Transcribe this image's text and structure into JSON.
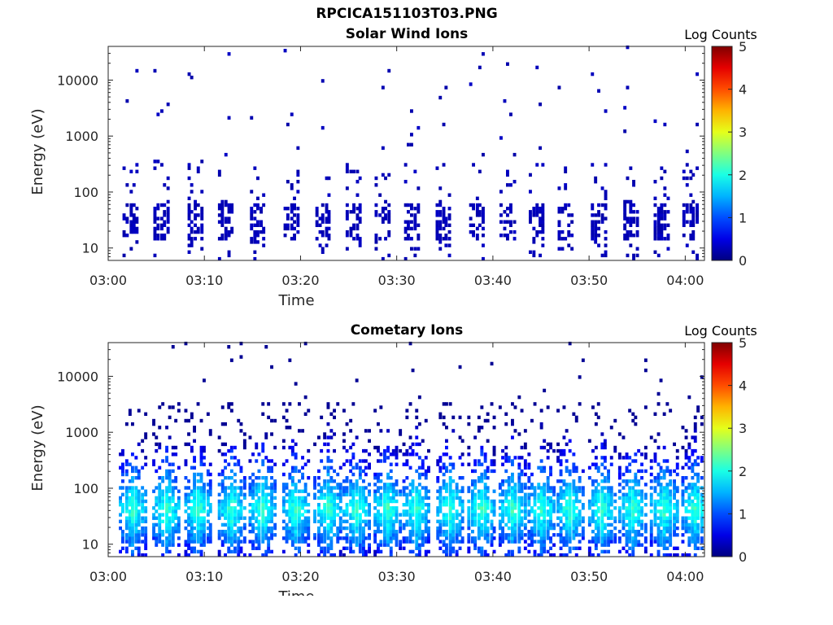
{
  "figure": {
    "file_title": "RPCICA151103T03.PNG"
  },
  "chart_data": [
    {
      "type": "heatmap",
      "title": "Solar Wind Ions",
      "xlabel": "Time",
      "ylabel": "Energy (eV)",
      "x_ticks": [
        "03:00",
        "03:10",
        "03:20",
        "03:30",
        "03:40",
        "03:50",
        "04:00"
      ],
      "x_range_minutes": [
        0,
        62
      ],
      "y_ticks": [
        "10",
        "100",
        "1000",
        "10000"
      ],
      "y_scale": "log",
      "y_range": [
        6,
        40000
      ],
      "colorbar": {
        "label": "Log Counts",
        "ticks": [
          "0",
          "1",
          "2",
          "3",
          "4",
          "5"
        ],
        "range": [
          0,
          5
        ],
        "colormap": "jet"
      },
      "bursts_minutes": [
        2.3,
        5.5,
        9.0,
        12.2,
        15.5,
        19.0,
        22.3,
        25.5,
        28.5,
        31.5,
        34.8,
        38.3,
        41.5,
        44.5,
        47.5,
        51.0,
        54.3,
        57.5,
        60.5
      ],
      "intensity_typical": 0.2
    },
    {
      "type": "heatmap",
      "title": "Cometary Ions",
      "xlabel": "Time",
      "ylabel": "Energy (eV)",
      "x_ticks": [
        "03:00",
        "03:10",
        "03:20",
        "03:30",
        "03:40",
        "03:50",
        "04:00"
      ],
      "x_range_minutes": [
        0,
        62
      ],
      "y_ticks": [
        "10",
        "100",
        "1000",
        "10000"
      ],
      "y_scale": "log",
      "y_range": [
        6,
        40000
      ],
      "colorbar": {
        "label": "Log Counts",
        "ticks": [
          "0",
          "1",
          "2",
          "3",
          "4",
          "5"
        ],
        "range": [
          0,
          5
        ],
        "colormap": "jet"
      },
      "bursts_minutes": [
        2.5,
        6.0,
        9.3,
        12.8,
        16.0,
        19.5,
        22.8,
        25.8,
        29.0,
        32.0,
        35.5,
        38.8,
        42.0,
        45.0,
        48.0,
        51.3,
        54.5,
        57.8,
        61.0
      ],
      "peak_energy_eV": 40,
      "intensity_peak": 2.0
    }
  ]
}
